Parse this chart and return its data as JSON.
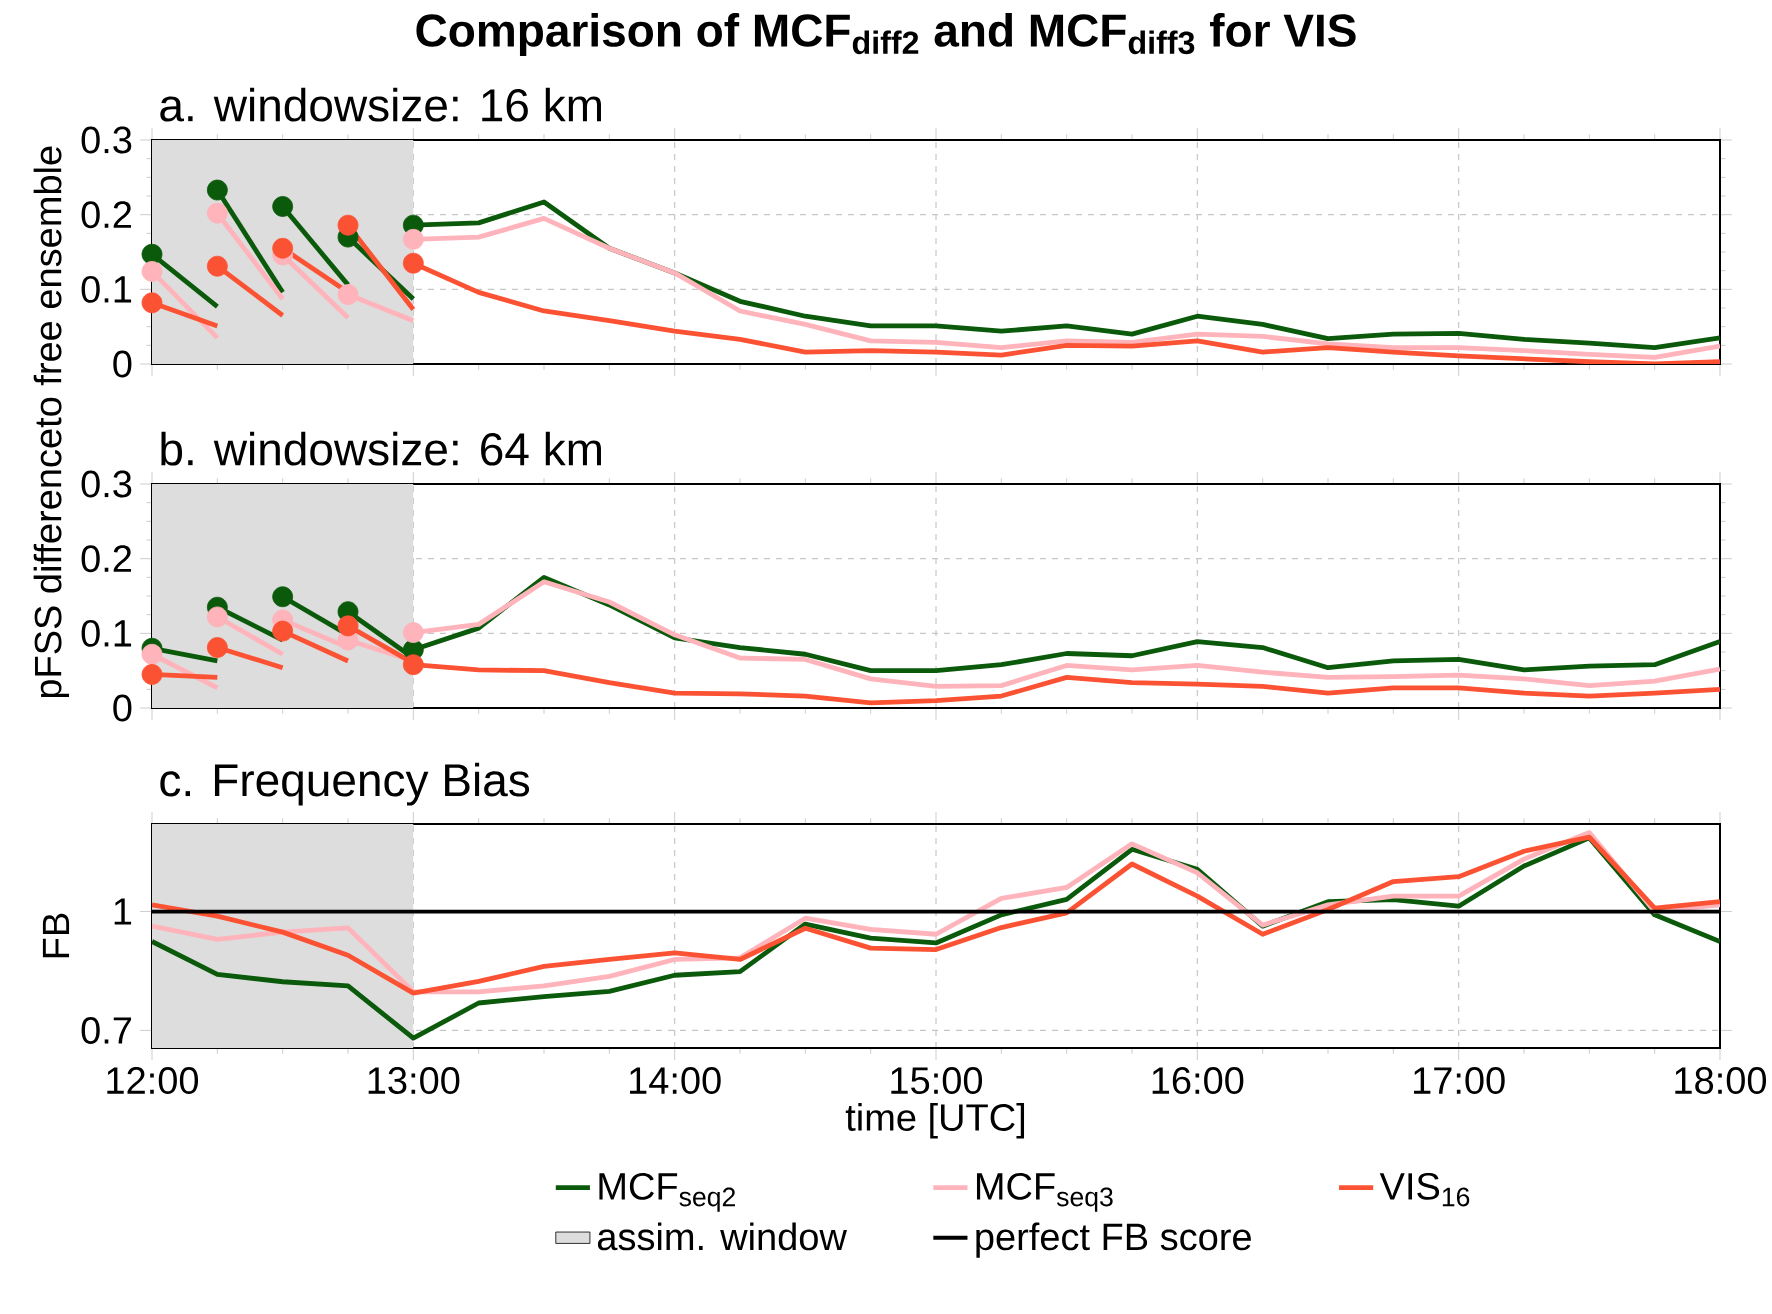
{
  "chart_data": [
    {
      "type": "line",
      "title": "**Comparison of MCF$_{diff2}$ and MCF$_{diff3}$ for VIS**",
      "subtitle": "a. windowsize: 16 km",
      "ylabel": "pFSS differenceto free ensemble",
      "xlim": [
        12,
        18
      ],
      "xticks": [
        {
          "value": 12,
          "label": null
        },
        {
          "value": 13,
          "label": null
        },
        {
          "value": 14,
          "label": null
        },
        {
          "value": 15,
          "label": null
        },
        {
          "value": 16,
          "label": null
        },
        {
          "value": 17,
          "label": null
        },
        {
          "value": 18,
          "label": null
        }
      ],
      "ylim": [
        0,
        0.3
      ],
      "yticks": [
        0,
        0.1,
        0.2,
        0.3
      ],
      "grid": true,
      "tick_labels": "y",
      "bands": [
        {
          "axis": "x",
          "from": 12,
          "to": 13,
          "color": "#dddddd"
        }
      ],
      "series": [
        {
          "color": "#0b5a0b",
          "x": [
            12,
            12.25
          ],
          "values": [
            0.147,
            0.077
          ]
        },
        {
          "color": "#0b5a0b",
          "x": [
            12.25,
            12.5
          ],
          "values": [
            0.233,
            0.096
          ]
        },
        {
          "color": "#0b5a0b",
          "x": [
            12.5,
            12.75
          ],
          "values": [
            0.211,
            0.106
          ]
        },
        {
          "color": "#0b5a0b",
          "x": [
            12.75,
            13
          ],
          "values": [
            0.17,
            0.087
          ]
        },
        {
          "color": "#0b5a0b",
          "x": [
            13,
            13.25,
            13.5,
            13.75,
            14,
            14.25,
            14.5,
            14.75,
            15,
            15.25,
            15.5,
            15.75,
            16,
            16.25,
            16.5,
            16.75,
            17,
            17.25,
            17.5,
            17.75,
            18
          ],
          "values": [
            0.186,
            0.189,
            0.217,
            0.155,
            0.122,
            0.084,
            0.064,
            0.051,
            0.051,
            0.044,
            0.051,
            0.04,
            0.064,
            0.053,
            0.034,
            0.04,
            0.041,
            0.033,
            0.028,
            0.022,
            0.035
          ]
        },
        {
          "color": "#ffb3ba",
          "x": [
            12,
            12.25
          ],
          "values": [
            0.124,
            0.035
          ]
        },
        {
          "color": "#ffb3ba",
          "x": [
            12.25,
            12.5
          ],
          "values": [
            0.202,
            0.087
          ]
        },
        {
          "color": "#ffb3ba",
          "x": [
            12.5,
            12.75
          ],
          "values": [
            0.146,
            0.062
          ]
        },
        {
          "color": "#ffb3ba",
          "x": [
            12.75,
            13
          ],
          "values": [
            0.093,
            0.058
          ]
        },
        {
          "color": "#ffb3ba",
          "x": [
            13,
            13.25,
            13.5,
            13.75,
            14,
            14.25,
            14.5,
            14.75,
            15,
            15.25,
            15.5,
            15.75,
            16,
            16.25,
            16.5,
            16.75,
            17,
            17.25,
            17.5,
            17.75,
            18
          ],
          "values": [
            0.167,
            0.17,
            0.195,
            0.155,
            0.122,
            0.071,
            0.053,
            0.031,
            0.029,
            0.022,
            0.031,
            0.029,
            0.04,
            0.037,
            0.027,
            0.022,
            0.022,
            0.018,
            0.013,
            0.009,
            0.024
          ]
        },
        {
          "color": "#fc5234",
          "x": [
            12,
            12.25
          ],
          "values": [
            0.082,
            0.051
          ]
        },
        {
          "color": "#fc5234",
          "x": [
            12.25,
            12.5
          ],
          "values": [
            0.131,
            0.065
          ]
        },
        {
          "color": "#fc5234",
          "x": [
            12.5,
            12.75
          ],
          "values": [
            0.155,
            0.096
          ]
        },
        {
          "color": "#fc5234",
          "x": [
            12.75,
            13
          ],
          "values": [
            0.186,
            0.073
          ]
        },
        {
          "color": "#fc5234",
          "x": [
            13,
            13.25,
            13.5,
            13.75,
            14,
            14.25,
            14.5,
            14.75,
            15,
            15.25,
            15.5,
            15.75,
            16,
            16.25,
            16.5,
            16.75,
            17,
            17.25,
            17.5,
            17.75,
            18
          ],
          "values": [
            0.135,
            0.096,
            0.071,
            0.058,
            0.044,
            0.033,
            0.016,
            0.018,
            0.016,
            0.012,
            0.025,
            0.024,
            0.031,
            0.016,
            0.022,
            0.016,
            0.011,
            0.007,
            0.003,
            0,
            0.003
          ]
        },
        {
          "type": "scatter",
          "marker": "circle",
          "color": "#0b5a0b",
          "x": [
            12,
            12.25,
            12.5,
            12.75,
            13
          ],
          "values": [
            0.147,
            0.233,
            0.211,
            0.17,
            0.186
          ]
        },
        {
          "type": "scatter",
          "marker": "circle",
          "color": "#ffb3ba",
          "x": [
            12,
            12.25,
            12.5,
            12.75,
            13
          ],
          "values": [
            0.124,
            0.202,
            0.146,
            0.093,
            0.167
          ]
        },
        {
          "type": "scatter",
          "marker": "circle",
          "color": "#fc5234",
          "x": [
            12,
            12.25,
            12.5,
            12.75,
            13
          ],
          "values": [
            0.082,
            0.131,
            0.155,
            0.186,
            0.135
          ]
        }
      ]
    },
    {
      "type": "line",
      "title": "b. windowsize: 64 km",
      "xlim": [
        12,
        18
      ],
      "xticks": [
        {
          "value": 12,
          "label": null
        },
        {
          "value": 13,
          "label": null
        },
        {
          "value": 14,
          "label": null
        },
        {
          "value": 15,
          "label": null
        },
        {
          "value": 16,
          "label": null
        },
        {
          "value": 17,
          "label": null
        },
        {
          "value": 18,
          "label": null
        }
      ],
      "ylim": [
        0,
        0.3
      ],
      "yticks": [
        0,
        0.1,
        0.2,
        0.3
      ],
      "grid": true,
      "tick_labels": "y",
      "bands": [
        {
          "axis": "x",
          "from": 12,
          "to": 13,
          "color": "#dddddd"
        }
      ],
      "series": [
        {
          "color": "#0b5a0b",
          "x": [
            12,
            12.25
          ],
          "values": [
            0.08,
            0.063
          ]
        },
        {
          "color": "#0b5a0b",
          "x": [
            12.25,
            12.5
          ],
          "values": [
            0.135,
            0.091
          ]
        },
        {
          "color": "#0b5a0b",
          "x": [
            12.5,
            12.75
          ],
          "values": [
            0.149,
            0.098
          ]
        },
        {
          "color": "#0b5a0b",
          "x": [
            12.75,
            13
          ],
          "values": [
            0.129,
            0.067
          ]
        },
        {
          "color": "#0b5a0b",
          "x": [
            13,
            13.25,
            13.5,
            13.75,
            14,
            14.25,
            14.5,
            14.75,
            15,
            15.25,
            15.5,
            15.75,
            16,
            16.25,
            16.5,
            16.75,
            17,
            17.25,
            17.5,
            17.75,
            18
          ],
          "values": [
            0.078,
            0.107,
            0.175,
            0.138,
            0.094,
            0.081,
            0.072,
            0.05,
            0.05,
            0.058,
            0.073,
            0.07,
            0.089,
            0.081,
            0.054,
            0.063,
            0.065,
            0.051,
            0.056,
            0.058,
            0.089
          ]
        },
        {
          "color": "#ffb3ba",
          "x": [
            12,
            12.25
          ],
          "values": [
            0.072,
            0.027
          ]
        },
        {
          "color": "#ffb3ba",
          "x": [
            12.25,
            12.5
          ],
          "values": [
            0.122,
            0.072
          ]
        },
        {
          "color": "#ffb3ba",
          "x": [
            12.5,
            12.75
          ],
          "values": [
            0.118,
            0.081
          ]
        },
        {
          "color": "#ffb3ba",
          "x": [
            12.75,
            13
          ],
          "values": [
            0.091,
            0.063
          ]
        },
        {
          "color": "#ffb3ba",
          "x": [
            13,
            13.25,
            13.5,
            13.75,
            14,
            14.25,
            14.5,
            14.75,
            15,
            15.25,
            15.5,
            15.75,
            16,
            16.25,
            16.5,
            16.75,
            17,
            17.25,
            17.5,
            17.75,
            18
          ],
          "values": [
            0.101,
            0.112,
            0.169,
            0.142,
            0.098,
            0.067,
            0.065,
            0.039,
            0.029,
            0.03,
            0.057,
            0.051,
            0.057,
            0.048,
            0.041,
            0.042,
            0.044,
            0.039,
            0.03,
            0.036,
            0.052
          ]
        },
        {
          "color": "#fc5234",
          "x": [
            12,
            12.25
          ],
          "values": [
            0.045,
            0.041
          ]
        },
        {
          "color": "#fc5234",
          "x": [
            12.25,
            12.5
          ],
          "values": [
            0.081,
            0.054
          ]
        },
        {
          "color": "#fc5234",
          "x": [
            12.5,
            12.75
          ],
          "values": [
            0.103,
            0.063
          ]
        },
        {
          "color": "#fc5234",
          "x": [
            12.75,
            13
          ],
          "values": [
            0.11,
            0.06
          ]
        },
        {
          "color": "#fc5234",
          "x": [
            13,
            13.25,
            13.5,
            13.75,
            14,
            14.25,
            14.5,
            14.75,
            15,
            15.25,
            15.5,
            15.75,
            16,
            16.25,
            16.5,
            16.75,
            17,
            17.25,
            17.5,
            17.75,
            18
          ],
          "values": [
            0.058,
            0.051,
            0.05,
            0.034,
            0.02,
            0.019,
            0.016,
            0.007,
            0.01,
            0.016,
            0.041,
            0.034,
            0.032,
            0.029,
            0.02,
            0.027,
            0.027,
            0.02,
            0.016,
            0.02,
            0.025
          ]
        },
        {
          "type": "scatter",
          "marker": "circle",
          "color": "#0b5a0b",
          "x": [
            12,
            12.25,
            12.5,
            12.75,
            13
          ],
          "values": [
            0.08,
            0.135,
            0.149,
            0.129,
            0.078
          ]
        },
        {
          "type": "scatter",
          "marker": "circle",
          "color": "#ffb3ba",
          "x": [
            12,
            12.25,
            12.5,
            12.75,
            13
          ],
          "values": [
            0.072,
            0.122,
            0.118,
            0.091,
            0.101
          ]
        },
        {
          "type": "scatter",
          "marker": "circle",
          "color": "#fc5234",
          "x": [
            12,
            12.25,
            12.5,
            12.75,
            13
          ],
          "values": [
            0.045,
            0.081,
            0.103,
            0.11,
            0.058
          ]
        }
      ]
    },
    {
      "type": "line",
      "title": "c. Frequency Bias",
      "xlabel": "time [UTC]",
      "ylabel": "FB",
      "xlim": [
        12,
        18
      ],
      "xticks": [
        {
          "value": 12,
          "label": "12:00"
        },
        {
          "value": 13,
          "label": "13:00"
        },
        {
          "value": 14,
          "label": "14:00"
        },
        {
          "value": 15,
          "label": "15:00"
        },
        {
          "value": 16,
          "label": "16:00"
        },
        {
          "value": 17,
          "label": "17:00"
        },
        {
          "value": 18,
          "label": "18:00"
        }
      ],
      "ylim": [
        0.664,
        1.3
      ],
      "yticks": [
        0.7,
        1
      ],
      "log": true,
      "grid": true,
      "legend": "bottom",
      "bands": [
        {
          "axis": "x",
          "from": 12,
          "to": 13,
          "color": "#dddddd",
          "label": "assim. window"
        }
      ],
      "ref_lines": [
        {
          "axis": "y",
          "value": 1,
          "color": "#000000",
          "label": "perfect FB score"
        }
      ],
      "x": [
        12,
        12.25,
        12.5,
        12.75,
        13,
        13.25,
        13.5,
        13.75,
        14,
        14.25,
        14.5,
        14.75,
        15,
        15.25,
        15.5,
        15.75,
        16,
        16.25,
        16.5,
        16.75,
        17,
        17.25,
        17.5,
        17.75,
        18
      ],
      "series": [
        {
          "name": "MCF$_{seq2}$",
          "color": "#0b5a0b",
          "values": [
            0.914,
            0.828,
            0.81,
            0.8,
            0.684,
            0.76,
            0.775,
            0.787,
            0.826,
            0.835,
            0.963,
            0.923,
            0.91,
            0.99,
            1.037,
            1.205,
            1.135,
            0.957,
            1.03,
            1.036,
            1.016,
            1.146,
            1.247,
            0.99,
            0.914
          ]
        },
        {
          "name": "MCF$_{seq3}$",
          "color": "#ffb3ba",
          "values": [
            0.957,
            0.92,
            0.94,
            0.952,
            0.786,
            0.786,
            0.8,
            0.823,
            0.866,
            0.87,
            0.98,
            0.948,
            0.934,
            1.04,
            1.075,
            1.225,
            1.123,
            0.96,
            1.02,
            1.047,
            1.047,
            1.17,
            1.267,
            1.0,
            1.02
          ]
        },
        {
          "name": "VIS$_{16}$",
          "color": "#fc5234",
          "values": [
            1.02,
            0.986,
            0.94,
            0.877,
            0.783,
            0.811,
            0.848,
            0.866,
            0.883,
            0.866,
            0.951,
            0.896,
            0.892,
            0.953,
            0.996,
            1.153,
            1.047,
            0.934,
            1.006,
            1.094,
            1.11,
            1.198,
            1.25,
            1.01,
            1.03
          ]
        }
      ]
    }
  ]
}
